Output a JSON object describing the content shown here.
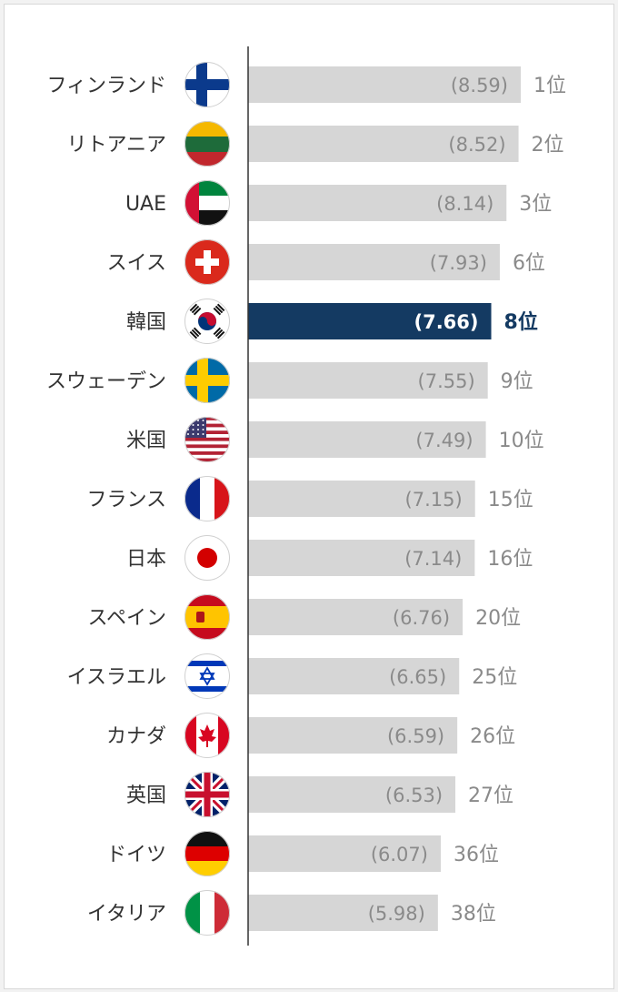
{
  "colors": {
    "bar": "#d6d6d6",
    "highlight_bar": "#143a62",
    "highlight_rank": "#143a62",
    "axis": "#333333",
    "text": "#333333",
    "muted_text": "#8a8a8a"
  },
  "chart_data": {
    "type": "bar",
    "orientation": "horizontal",
    "highlight": "韓国",
    "categories": [
      "フィンランド",
      "リトアニア",
      "UAE",
      "スイス",
      "韓国",
      "スウェーデン",
      "米国",
      "フランス",
      "日本",
      "スペイン",
      "イスラエル",
      "カナダ",
      "英国",
      "ドイツ",
      "イタリア"
    ],
    "values": [
      8.59,
      8.52,
      8.14,
      7.93,
      7.66,
      7.55,
      7.49,
      7.15,
      7.14,
      6.76,
      6.65,
      6.59,
      6.53,
      6.07,
      5.98
    ],
    "value_labels": [
      "(8.59)",
      "(8.52)",
      "(8.14)",
      "(7.93)",
      "(7.66)",
      "(7.55)",
      "(7.49)",
      "(7.15)",
      "(7.14)",
      "(6.76)",
      "(6.65)",
      "(6.59)",
      "(6.53)",
      "(6.07)",
      "(5.98)"
    ],
    "ranks": [
      "1位",
      "2位",
      "3位",
      "6位",
      "8位",
      "9位",
      "10位",
      "15位",
      "16位",
      "20位",
      "25位",
      "26位",
      "27位",
      "36位",
      "38位"
    ],
    "flags": [
      "finland-flag-icon",
      "lithuania-flag-icon",
      "uae-flag-icon",
      "switzerland-flag-icon",
      "south-korea-flag-icon",
      "sweden-flag-icon",
      "usa-flag-icon",
      "france-flag-icon",
      "japan-flag-icon",
      "spain-flag-icon",
      "israel-flag-icon",
      "canada-flag-icon",
      "uk-flag-icon",
      "germany-flag-icon",
      "italy-flag-icon"
    ],
    "title": "",
    "xlabel": "",
    "ylabel": ""
  }
}
